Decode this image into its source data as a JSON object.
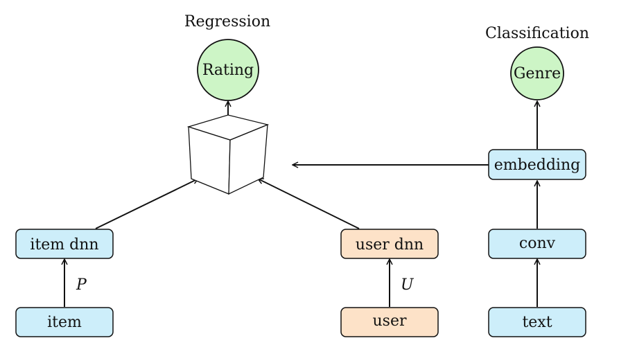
{
  "headings": {
    "regression": "Regression",
    "classification": "Classification"
  },
  "nodes": {
    "rating": "Rating",
    "genre": "Genre",
    "embedding": "embedding",
    "item_dnn": "item dnn",
    "user_dnn": "user dnn",
    "conv": "conv",
    "item": "item",
    "user": "user",
    "text": "text"
  },
  "edge_labels": {
    "item_to_item_dnn": "P",
    "user_to_user_dnn": "U"
  },
  "colors": {
    "blue_fill": "#cdeefa",
    "orange_fill": "#fde2c8",
    "green_fill": "#cdf5c6",
    "stroke": "#111111"
  }
}
